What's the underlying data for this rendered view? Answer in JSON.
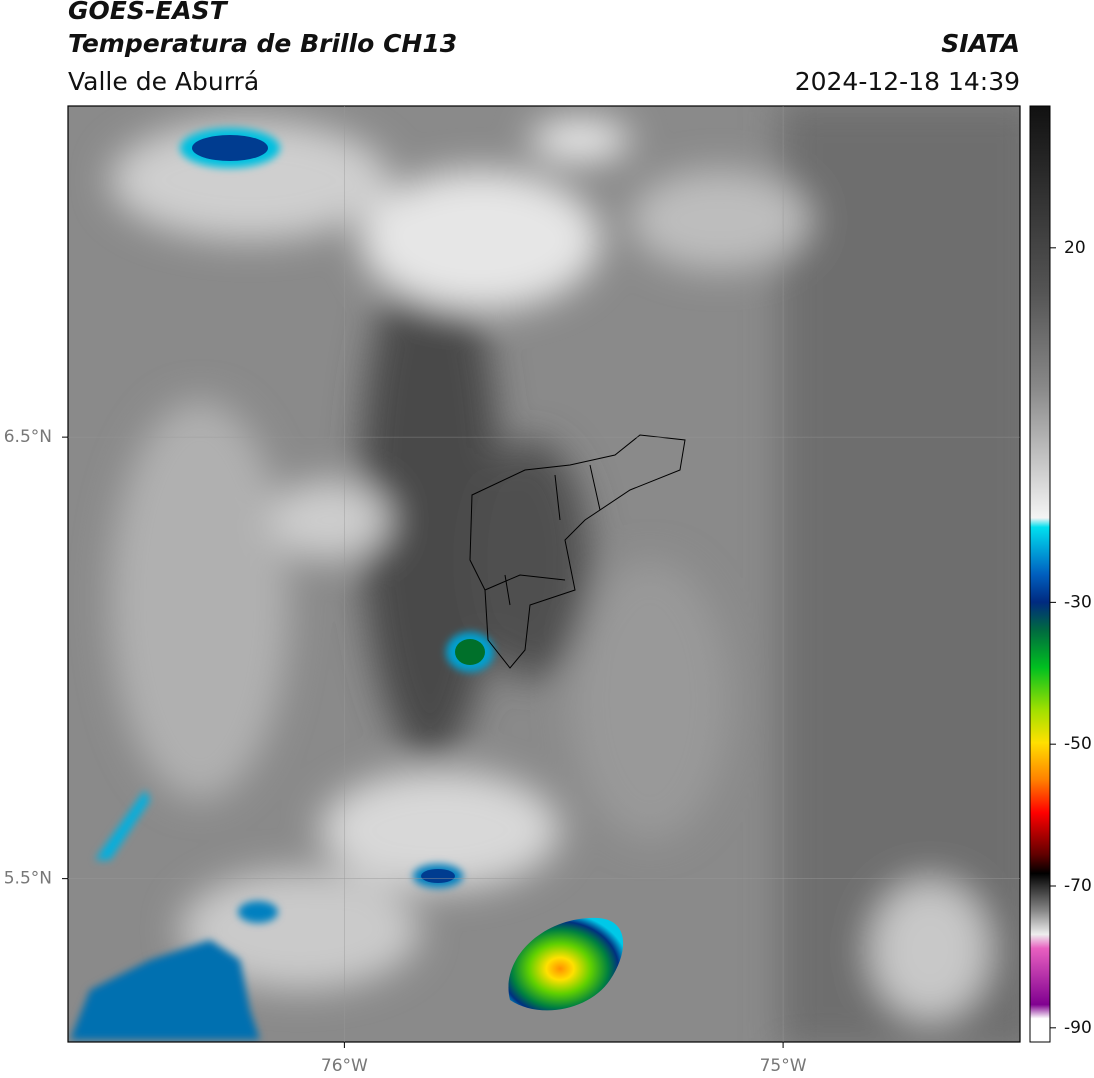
{
  "header": {
    "title": "GOES-EAST",
    "subtitle": "Temperatura de Brillo CH13",
    "region": "Valle de Aburrá",
    "source": "SIATA",
    "datetime": "2024-12-18 14:39"
  },
  "map": {
    "xlim": [
      -76.63,
      -74.46
    ],
    "ylim": [
      5.13,
      7.25
    ],
    "lon_ticks": [
      {
        "value": -76,
        "label": "76°W"
      },
      {
        "value": -75,
        "label": "75°W"
      }
    ],
    "lat_ticks": [
      {
        "value": 6.5,
        "label": "6.5°N"
      },
      {
        "value": 5.5,
        "label": "5.5°N"
      }
    ]
  },
  "colorbar": {
    "lim": [
      -92,
      40
    ],
    "ticks": [
      20,
      -30,
      -50,
      -70,
      -90
    ]
  }
}
